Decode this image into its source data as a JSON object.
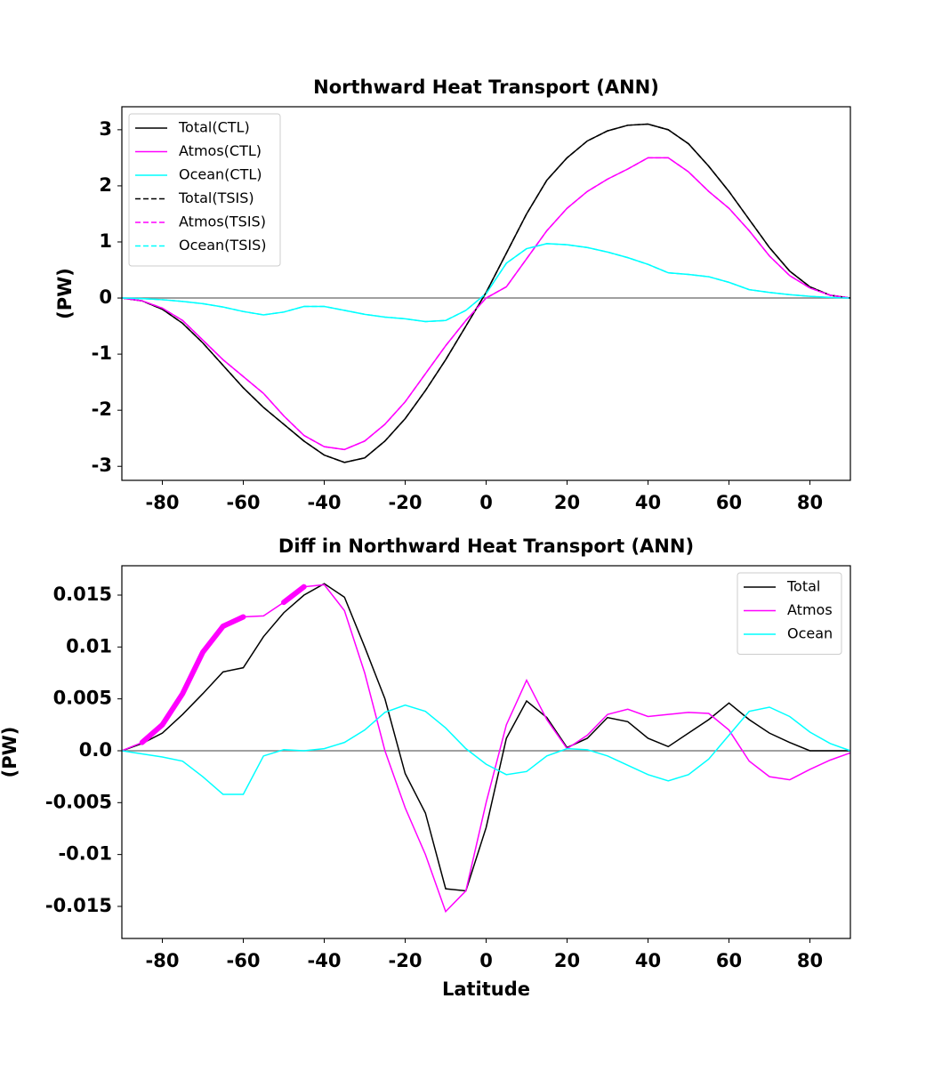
{
  "chart_data": [
    {
      "type": "line",
      "title": "Northward Heat Transport (ANN)",
      "ylabel": "(PW)",
      "x": [
        -90,
        -85,
        -80,
        -75,
        -70,
        -65,
        -60,
        -55,
        -50,
        -45,
        -40,
        -35,
        -30,
        -25,
        -20,
        -15,
        -10,
        -5,
        0,
        5,
        10,
        15,
        20,
        25,
        30,
        35,
        40,
        45,
        50,
        55,
        60,
        65,
        70,
        75,
        80,
        85,
        90
      ],
      "xlim": [
        -90,
        90
      ],
      "xticks": [
        -80,
        -60,
        -40,
        -20,
        0,
        20,
        40,
        60,
        80
      ],
      "ylim": [
        -3.25,
        3.41
      ],
      "yticks": [
        -3,
        -2,
        -1,
        0,
        1,
        2,
        3
      ],
      "hline": {
        "y": 0,
        "color": "#808080"
      },
      "legend": "upper left",
      "series": [
        {
          "name": "Total(CTL)",
          "color": "#000000",
          "linestyle": "solid",
          "values": [
            0,
            -0.05,
            -0.2,
            -0.45,
            -0.8,
            -1.2,
            -1.6,
            -1.95,
            -2.25,
            -2.55,
            -2.8,
            -2.93,
            -2.85,
            -2.55,
            -2.15,
            -1.65,
            -1.1,
            -0.5,
            0.1,
            0.8,
            1.5,
            2.1,
            2.5,
            2.8,
            2.98,
            3.08,
            3.1,
            3.0,
            2.75,
            2.35,
            1.9,
            1.4,
            0.9,
            0.48,
            0.2,
            0.05,
            0
          ]
        },
        {
          "name": "Atmos(CTL)",
          "color": "#ff00ff",
          "linestyle": "solid",
          "values": [
            0,
            -0.05,
            -0.18,
            -0.4,
            -0.75,
            -1.1,
            -1.4,
            -1.7,
            -2.1,
            -2.45,
            -2.65,
            -2.7,
            -2.55,
            -2.25,
            -1.85,
            -1.35,
            -0.85,
            -0.4,
            0,
            0.2,
            0.7,
            1.2,
            1.6,
            1.9,
            2.12,
            2.3,
            2.5,
            2.5,
            2.25,
            1.9,
            1.6,
            1.2,
            0.75,
            0.4,
            0.18,
            0.05,
            0
          ]
        },
        {
          "name": "Ocean(CTL)",
          "color": "#00ffff",
          "linestyle": "solid",
          "values": [
            0,
            -0.01,
            -0.03,
            -0.06,
            -0.1,
            -0.16,
            -0.24,
            -0.3,
            -0.25,
            -0.15,
            -0.15,
            -0.22,
            -0.29,
            -0.34,
            -0.37,
            -0.42,
            -0.4,
            -0.22,
            0.08,
            0.62,
            0.88,
            0.97,
            0.95,
            0.9,
            0.82,
            0.72,
            0.6,
            0.45,
            0.42,
            0.38,
            0.28,
            0.15,
            0.1,
            0.06,
            0.03,
            0.01,
            0
          ]
        },
        {
          "name": "Total(TSIS)",
          "color": "#000000",
          "linestyle": "dashed",
          "values": [
            0,
            -0.05,
            -0.2,
            -0.45,
            -0.8,
            -1.2,
            -1.6,
            -1.95,
            -2.25,
            -2.55,
            -2.8,
            -2.93,
            -2.85,
            -2.55,
            -2.15,
            -1.65,
            -1.1,
            -0.5,
            0.1,
            0.8,
            1.5,
            2.1,
            2.5,
            2.8,
            2.98,
            3.08,
            3.1,
            3.0,
            2.75,
            2.35,
            1.9,
            1.4,
            0.9,
            0.48,
            0.2,
            0.05,
            0
          ]
        },
        {
          "name": "Atmos(TSIS)",
          "color": "#ff00ff",
          "linestyle": "dashed",
          "values": [
            0,
            -0.05,
            -0.18,
            -0.4,
            -0.75,
            -1.1,
            -1.4,
            -1.7,
            -2.1,
            -2.45,
            -2.65,
            -2.7,
            -2.55,
            -2.25,
            -1.85,
            -1.35,
            -0.85,
            -0.4,
            0,
            0.2,
            0.7,
            1.2,
            1.6,
            1.9,
            2.12,
            2.3,
            2.5,
            2.5,
            2.25,
            1.9,
            1.6,
            1.2,
            0.75,
            0.4,
            0.18,
            0.05,
            0
          ]
        },
        {
          "name": "Ocean(TSIS)",
          "color": "#00ffff",
          "linestyle": "dashed",
          "values": [
            0,
            -0.01,
            -0.03,
            -0.06,
            -0.1,
            -0.16,
            -0.24,
            -0.3,
            -0.25,
            -0.15,
            -0.15,
            -0.22,
            -0.29,
            -0.34,
            -0.37,
            -0.42,
            -0.4,
            -0.22,
            0.08,
            0.62,
            0.88,
            0.97,
            0.95,
            0.9,
            0.82,
            0.72,
            0.6,
            0.45,
            0.42,
            0.38,
            0.28,
            0.15,
            0.1,
            0.06,
            0.03,
            0.01,
            0
          ]
        }
      ]
    },
    {
      "type": "line",
      "title": "Diff in Northward Heat Transport (ANN)",
      "ylabel": "(PW)",
      "xlabel": "Latitude",
      "x": [
        -90,
        -85,
        -80,
        -75,
        -70,
        -65,
        -60,
        -55,
        -50,
        -45,
        -40,
        -35,
        -30,
        -25,
        -20,
        -15,
        -10,
        -5,
        0,
        5,
        10,
        15,
        20,
        25,
        30,
        35,
        40,
        45,
        50,
        55,
        60,
        65,
        70,
        75,
        80,
        85,
        90
      ],
      "xlim": [
        -90,
        90
      ],
      "xticks": [
        -80,
        -60,
        -40,
        -20,
        0,
        20,
        40,
        60,
        80
      ],
      "ylim": [
        -0.01809,
        0.01783
      ],
      "yticks": [
        -0.015,
        -0.01,
        -0.005,
        {
          "value": 0,
          "label": "0.0"
        },
        0.005,
        0.01,
        0.015
      ],
      "hline": {
        "y": 0,
        "color": "#808080"
      },
      "legend": "upper right",
      "series": [
        {
          "name": "Total",
          "color": "#000000",
          "linestyle": "solid",
          "values": [
            0,
            0.0007,
            0.0017,
            0.0035,
            0.0055,
            0.0076,
            0.008,
            0.011,
            0.0133,
            0.015,
            0.0161,
            0.0148,
            0.01,
            0.005,
            -0.0022,
            -0.006,
            -0.0133,
            -0.0135,
            -0.0074,
            0.0012,
            0.0048,
            0.0032,
            0.0003,
            0.0012,
            0.0032,
            0.0028,
            0.0012,
            0.0004,
            0.0017,
            0.003,
            0.0046,
            0.003,
            0.0017,
            0.0008,
            0,
            0,
            0
          ]
        },
        {
          "name": "Atmos",
          "color": "#ff00ff",
          "linestyle": "solid",
          "highlight_x": [
            [
              -88,
              -58
            ],
            [
              -52,
              -44
            ]
          ],
          "values": [
            0,
            0.0008,
            0.0025,
            0.0055,
            0.0095,
            0.012,
            0.0129,
            0.013,
            0.0143,
            0.0158,
            0.016,
            0.0135,
            0.0075,
            0,
            -0.0055,
            -0.01,
            -0.0155,
            -0.0135,
            -0.005,
            0.0025,
            0.0068,
            0.003,
            0.0002,
            0.0015,
            0.0035,
            0.004,
            0.0033,
            0.0035,
            0.0037,
            0.0036,
            0.002,
            -0.001,
            -0.0025,
            -0.0028,
            -0.0018,
            -0.0009,
            -0.0002
          ]
        },
        {
          "name": "Ocean",
          "color": "#00ffff",
          "linestyle": "solid",
          "values": [
            0,
            -0.0003,
            -0.0006,
            -0.001,
            -0.0025,
            -0.0042,
            -0.0042,
            -0.0005,
            0.0001,
            0,
            0.0002,
            0.0008,
            0.002,
            0.0037,
            0.0044,
            0.0038,
            0.0022,
            0.0002,
            -0.0013,
            -0.0023,
            -0.002,
            -0.0005,
            0.0002,
            0.0001,
            -0.0005,
            -0.0014,
            -0.0023,
            -0.0029,
            -0.0023,
            -0.0008,
            0.0015,
            0.0038,
            0.0042,
            0.0033,
            0.0018,
            0.0007,
            0
          ]
        }
      ]
    }
  ]
}
